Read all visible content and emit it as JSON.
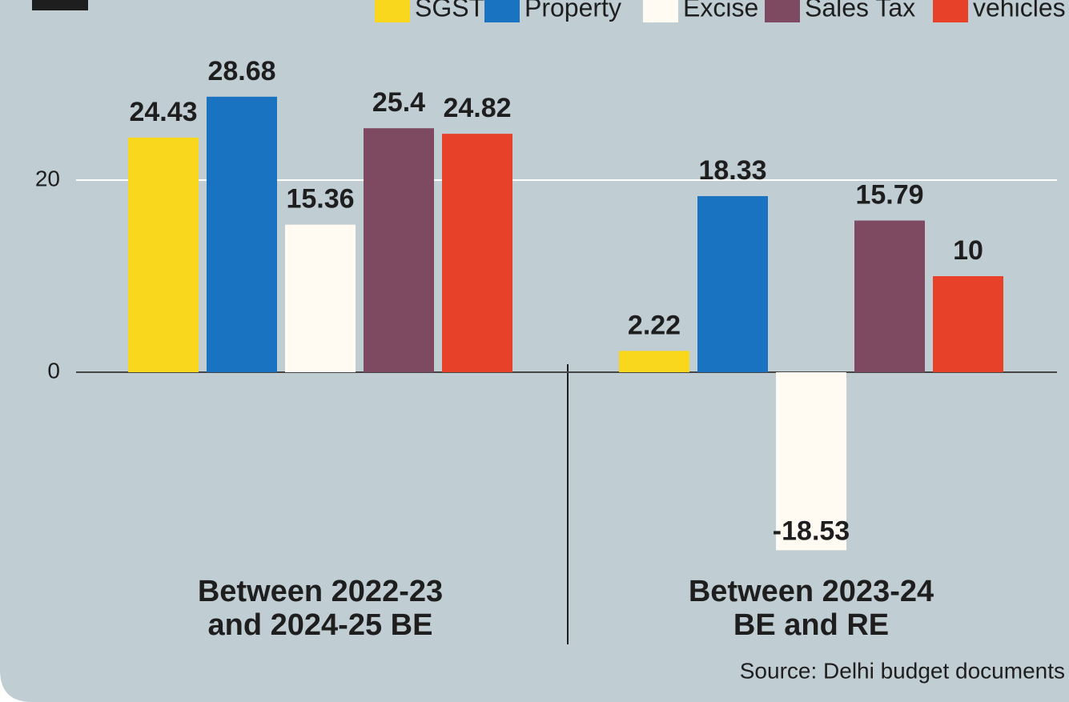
{
  "chart_data": {
    "type": "bar",
    "categories": [
      "Between 2022-23\nand 2024-25 BE",
      "Between 2023-24\nBE and RE"
    ],
    "series": [
      {
        "name": "SGST",
        "color": "#f9d71c",
        "values": [
          24.43,
          2.22
        ]
      },
      {
        "name": "Property",
        "color": "#1a73c0",
        "values": [
          28.68,
          18.33
        ]
      },
      {
        "name": "Excise",
        "color": "#fffbf2",
        "values": [
          15.36,
          -18.53
        ]
      },
      {
        "name": "Sales Tax",
        "color": "#7e4a62",
        "values": [
          25.4,
          15.79
        ]
      },
      {
        "name": "vehicles",
        "color": "#e8412a",
        "values": [
          24.82,
          10
        ]
      }
    ],
    "ylim": [
      -34,
      38.75
    ],
    "yticks": [
      0,
      20
    ],
    "grid": true,
    "source": "Source: Delhi budget documents"
  }
}
